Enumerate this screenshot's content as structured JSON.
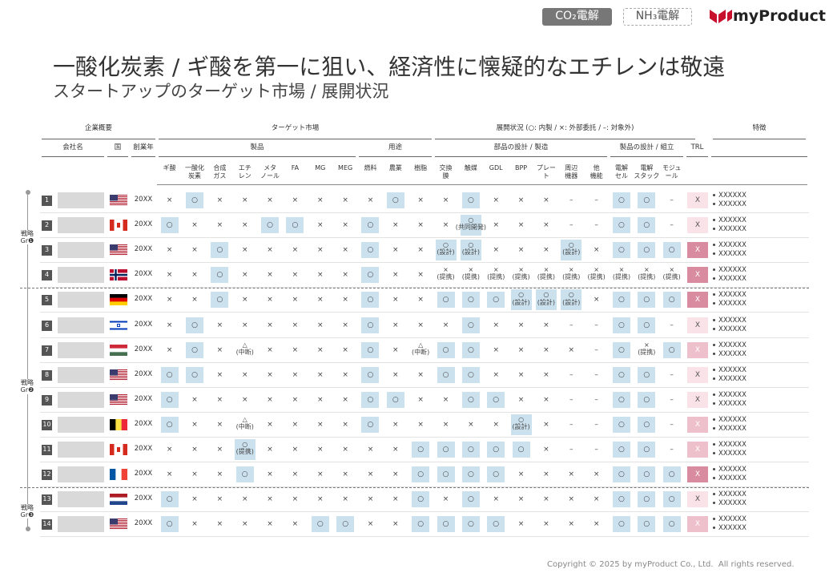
{
  "header": {
    "tags": [
      "CO₂電解",
      "NH₃電解"
    ],
    "logo": "myProduct"
  },
  "title": "一酸化炭素 / ギ酸を第一に狙い、経済性に懐疑的なエチレンは敬遠",
  "subtitle": "スタートアップのターゲット市場 / 展開状況",
  "table": {
    "top_headers": [
      "企業概要",
      "ターゲット市場",
      "展開状況 (○: 内製 / ×: 外部委託 / –: 対象外)",
      "特徴"
    ],
    "sub_headers": [
      "会社名",
      "国",
      "創業年",
      "製品",
      "用途",
      "部品の設計 / 製造",
      "製品の設計 / 組立",
      "TRL"
    ],
    "columns": [
      "ギ酸",
      "一酸化\n炭素",
      "合成\nガス",
      "エチ\nレン",
      "メタ\nノール",
      "FA",
      "MG",
      "MEG",
      "燃料",
      "農業",
      "樹脂",
      "交換\n膜",
      "触媒",
      "GDL",
      "BPP",
      "プレー\nト",
      "周辺\n機器",
      "他\n機能",
      "電解\nセル",
      "電解\nスタック",
      "モジュ\nール"
    ],
    "groups": [
      {
        "label": "戦略\nGr❶",
        "rows": [
          {
            "num": "1",
            "country": "US",
            "year": "20XX",
            "cells": [
              "×",
              "○",
              "×",
              "×",
              "×",
              "×",
              "×",
              "×",
              "×",
              "○",
              "×",
              "×",
              "○",
              "×",
              "×",
              "×",
              "–",
              "–",
              "○",
              "○",
              "–"
            ],
            "trl": {
              "text": "X",
              "color": "#fae3e8"
            },
            "features": [
              "XXXXXX",
              "XXXXXX"
            ]
          },
          {
            "num": "2",
            "country": "CA",
            "year": "20XX",
            "cells": [
              "○",
              "×",
              "×",
              "×",
              "○",
              "○",
              "×",
              "×",
              "○",
              "×",
              "×",
              "×",
              "○\n(共同開発)",
              "×",
              "×",
              "×",
              "–",
              "–",
              "○",
              "○",
              "–"
            ],
            "trl": {
              "text": "X",
              "color": "#fae3e8"
            },
            "features": [
              "XXXXXX",
              "XXXXXX"
            ]
          },
          {
            "num": "3",
            "country": "US",
            "year": "20XX",
            "cells": [
              "×",
              "×",
              "○",
              "×",
              "×",
              "×",
              "×",
              "×",
              "○",
              "×",
              "×",
              "○\n(設計)",
              "○\n(設計)",
              "×",
              "×",
              "×",
              "○\n(設計)",
              "×",
              "○",
              "○",
              "○"
            ],
            "trl": {
              "text": "X",
              "color": "#d98ca0"
            },
            "features": [
              "XXXXXX",
              "XXXXXX"
            ]
          },
          {
            "num": "4",
            "country": "NO",
            "year": "20XX",
            "cells": [
              "×",
              "×",
              "○",
              "×",
              "×",
              "×",
              "×",
              "×",
              "○",
              "×",
              "×",
              "×\n(提携)",
              "×\n(提携)",
              "×\n(提携)",
              "×\n(提携)",
              "×\n(提携)",
              "×\n(提携)",
              "×\n(提携)",
              "×\n(提携)",
              "×\n(提携)",
              "×\n(提携)"
            ],
            "trl": {
              "text": "X",
              "color": "#d98ca0"
            },
            "features": [
              "XXXXXX",
              "XXXXXX"
            ]
          }
        ]
      },
      {
        "label": "戦略\nGr❷",
        "rows": [
          {
            "num": "5",
            "country": "DE",
            "year": "20XX",
            "cells": [
              "×",
              "×",
              "○",
              "×",
              "×",
              "×",
              "×",
              "×",
              "○",
              "×",
              "×",
              "○",
              "○",
              "○",
              "○\n(設計)",
              "○\n(設計)",
              "○\n(設計)",
              "×",
              "○",
              "○",
              "○"
            ],
            "trl": {
              "text": "X",
              "color": "#d98ca0"
            },
            "features": [
              "XXXXXX",
              "XXXXXX"
            ]
          },
          {
            "num": "6",
            "country": "IL",
            "year": "20XX",
            "cells": [
              "×",
              "○",
              "×",
              "×",
              "×",
              "×",
              "×",
              "×",
              "○",
              "×",
              "×",
              "×",
              "○",
              "×",
              "×",
              "×",
              "–",
              "–",
              "○",
              "○",
              "–"
            ],
            "trl": {
              "text": "X",
              "color": "#fae3e8"
            },
            "features": [
              "XXXXXX",
              "XXXXXX"
            ]
          },
          {
            "num": "7",
            "country": "HU",
            "year": "20XX",
            "cells": [
              "×",
              "○",
              "×",
              "△\n(中断)",
              "×",
              "×",
              "×",
              "×",
              "○",
              "×",
              "△\n(中断)",
              "○",
              "○",
              "×",
              "×",
              "×",
              "×",
              "–",
              "○",
              "×\n(提携)",
              "○"
            ],
            "trl": {
              "text": "X",
              "color": "#eec0cb"
            },
            "features": [
              "XXXXXX",
              "XXXXXX"
            ]
          },
          {
            "num": "8",
            "country": "US",
            "year": "20XX",
            "cells": [
              "○",
              "○",
              "×",
              "×",
              "×",
              "×",
              "×",
              "×",
              "○",
              "×",
              "×",
              "○",
              "○",
              "×",
              "×",
              "×",
              "–",
              "–",
              "○",
              "○",
              "–"
            ],
            "trl": {
              "text": "X",
              "color": "#fae3e8"
            },
            "features": [
              "XXXXXX",
              "XXXXXX"
            ]
          },
          {
            "num": "9",
            "country": "US",
            "year": "20XX",
            "cells": [
              "○",
              "×",
              "×",
              "×",
              "×",
              "×",
              "×",
              "×",
              "○",
              "○",
              "×",
              "×",
              "○",
              "○",
              "×",
              "×",
              "–",
              "–",
              "○",
              "○",
              "–"
            ],
            "trl": {
              "text": "X",
              "color": "#fae3e8"
            },
            "features": [
              "XXXXXX",
              "XXXXXX"
            ]
          },
          {
            "num": "10",
            "country": "BE",
            "year": "20XX",
            "cells": [
              "○",
              "×",
              "×",
              "△\n(中断)",
              "×",
              "×",
              "×",
              "×",
              "○",
              "×",
              "×",
              "×",
              "×",
              "×",
              "○\n(設計)",
              "×",
              "–",
              "–",
              "○",
              "○",
              "–"
            ],
            "trl": {
              "text": "X",
              "color": "#eec0cb"
            },
            "features": [
              "XXXXXX",
              "XXXXXX"
            ]
          },
          {
            "num": "11",
            "country": "CA",
            "year": "20XX",
            "cells": [
              "×",
              "×",
              "×",
              "○\n(提携)",
              "×",
              "×",
              "×",
              "×",
              "×",
              "×",
              "○",
              "○",
              "○",
              "○",
              "○",
              "×",
              "–",
              "–",
              "○",
              "○",
              "–"
            ],
            "trl": {
              "text": "X",
              "color": "#eec0cb"
            },
            "features": [
              "XXXXXX",
              "XXXXXX"
            ]
          },
          {
            "num": "12",
            "country": "FR",
            "year": "20XX",
            "cells": [
              "×",
              "×",
              "×",
              "○",
              "×",
              "×",
              "×",
              "×",
              "×",
              "×",
              "○",
              "○",
              "○",
              "○",
              "×",
              "×",
              "×",
              "×",
              "○",
              "○",
              "○"
            ],
            "trl": {
              "text": "X",
              "color": "#d98ca0"
            },
            "features": [
              "XXXXXX",
              "XXXXXX"
            ]
          }
        ]
      },
      {
        "label": "戦略\nGr❸",
        "rows": [
          {
            "num": "13",
            "country": "NL",
            "year": "20XX",
            "cells": [
              "○",
              "×",
              "×",
              "×",
              "×",
              "×",
              "×",
              "×",
              "×",
              "×",
              "○",
              "×",
              "○",
              "×",
              "×",
              "×",
              "×",
              "×",
              "○",
              "○",
              "○"
            ],
            "trl": {
              "text": "X",
              "color": "#fae3e8"
            },
            "features": [
              "XXXXXX",
              "XXXXXX"
            ]
          },
          {
            "num": "14",
            "country": "US",
            "year": "20XX",
            "cells": [
              "○",
              "×",
              "×",
              "×",
              "×",
              "×",
              "○",
              "○",
              "×",
              "×",
              "○",
              "○",
              "○",
              "○",
              "×",
              "×",
              "×",
              "×",
              "○",
              "○",
              "○"
            ],
            "trl": {
              "text": "X",
              "color": "#eec0cb"
            },
            "features": [
              "XXXXXX",
              "XXXXXX"
            ]
          }
        ]
      }
    ]
  },
  "footer": "Copyright © 2025 by myProduct Co., Ltd.  All rights reserved."
}
